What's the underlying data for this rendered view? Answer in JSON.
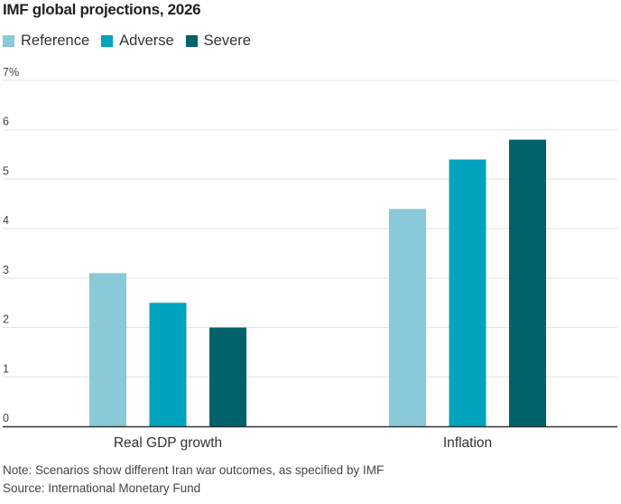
{
  "chart_data": {
    "type": "bar",
    "title": "IMF global projections, 2026",
    "categories": [
      "Real GDP growth",
      "Inflation"
    ],
    "series": [
      {
        "name": "Reference",
        "color": "#8ac9d7",
        "values": [
          3.1,
          4.4
        ]
      },
      {
        "name": "Adverse",
        "color": "#00a3bd",
        "values": [
          2.5,
          5.4
        ]
      },
      {
        "name": "Severe",
        "color": "#00626b",
        "values": [
          2.0,
          5.8
        ]
      }
    ],
    "xlabel": "",
    "ylabel": "",
    "ylim": [
      0,
      7
    ],
    "yticks": [
      0,
      1,
      2,
      3,
      4,
      5,
      6,
      7
    ],
    "ytick_labels": [
      "0",
      "1",
      "2",
      "3",
      "4",
      "5",
      "6",
      "7%"
    ],
    "grid": true,
    "legend_position": "top-left",
    "note": "Note: Scenarios show different Iran war outcomes, as specified by IMF",
    "source": "Source: International Monetary Fund"
  }
}
